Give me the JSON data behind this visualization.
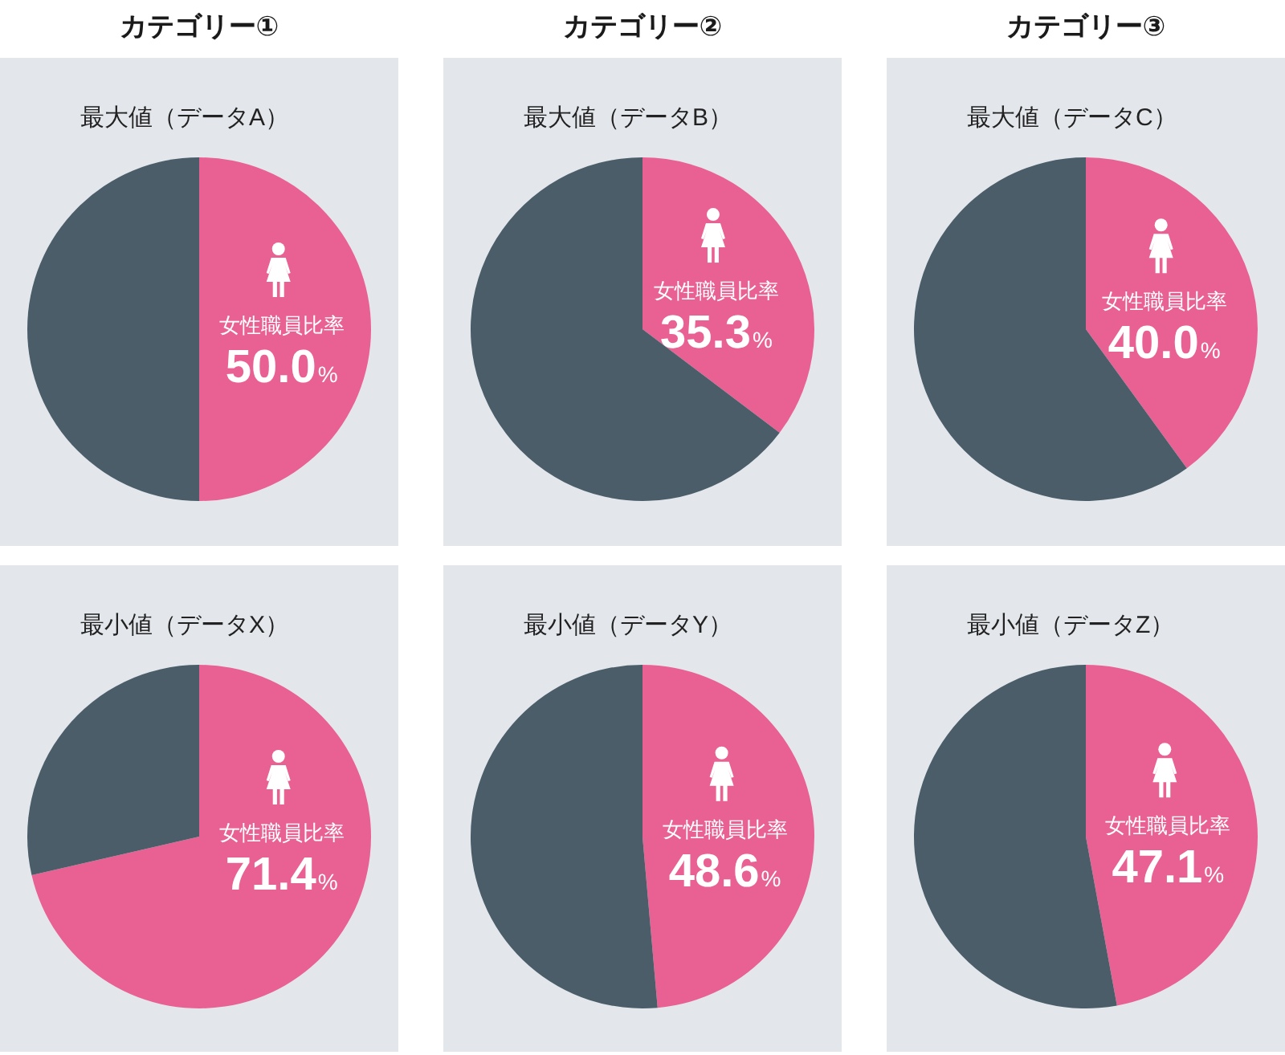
{
  "chart_data": [
    {
      "type": "pie",
      "title": "カテゴリー①",
      "subtitle": "最大値（データA）",
      "categories": [
        "女性職員比率",
        null
      ],
      "values": [
        50.0,
        50.0
      ],
      "colors": [
        "#e96192",
        "#4a5d69"
      ],
      "value_labels": [
        "50.0%",
        null
      ]
    },
    {
      "type": "pie",
      "title": "カテゴリー②",
      "subtitle": "最大値（データB）",
      "categories": [
        "女性職員比率",
        null
      ],
      "values": [
        35.3,
        64.7
      ],
      "colors": [
        "#e96192",
        "#4a5d69"
      ],
      "value_labels": [
        "35.3%",
        null
      ]
    },
    {
      "type": "pie",
      "title": "カテゴリー③",
      "subtitle": "最大値（データC）",
      "categories": [
        "女性職員比率",
        null
      ],
      "values": [
        40.0,
        60.0
      ],
      "colors": [
        "#e96192",
        "#4a5d69"
      ],
      "value_labels": [
        "40.0%",
        null
      ]
    },
    {
      "type": "pie",
      "subtitle": "最小値（データX）",
      "categories": [
        "女性職員比率",
        null
      ],
      "values": [
        71.4,
        28.6
      ],
      "colors": [
        "#e96192",
        "#4a5d69"
      ],
      "value_labels": [
        "71.4%",
        null
      ]
    },
    {
      "type": "pie",
      "subtitle": "最小値（データY）",
      "categories": [
        "女性職員比率",
        null
      ],
      "values": [
        48.6,
        51.4
      ],
      "colors": [
        "#e96192",
        "#4a5d69"
      ],
      "value_labels": [
        "48.6%",
        null
      ]
    },
    {
      "type": "pie",
      "subtitle": "最小値（データZ）",
      "categories": [
        "女性職員比率",
        null
      ],
      "values": [
        47.1,
        52.9
      ],
      "colors": [
        "#e96192",
        "#4a5d69"
      ],
      "value_labels": [
        "47.1%",
        null
      ]
    }
  ]
}
